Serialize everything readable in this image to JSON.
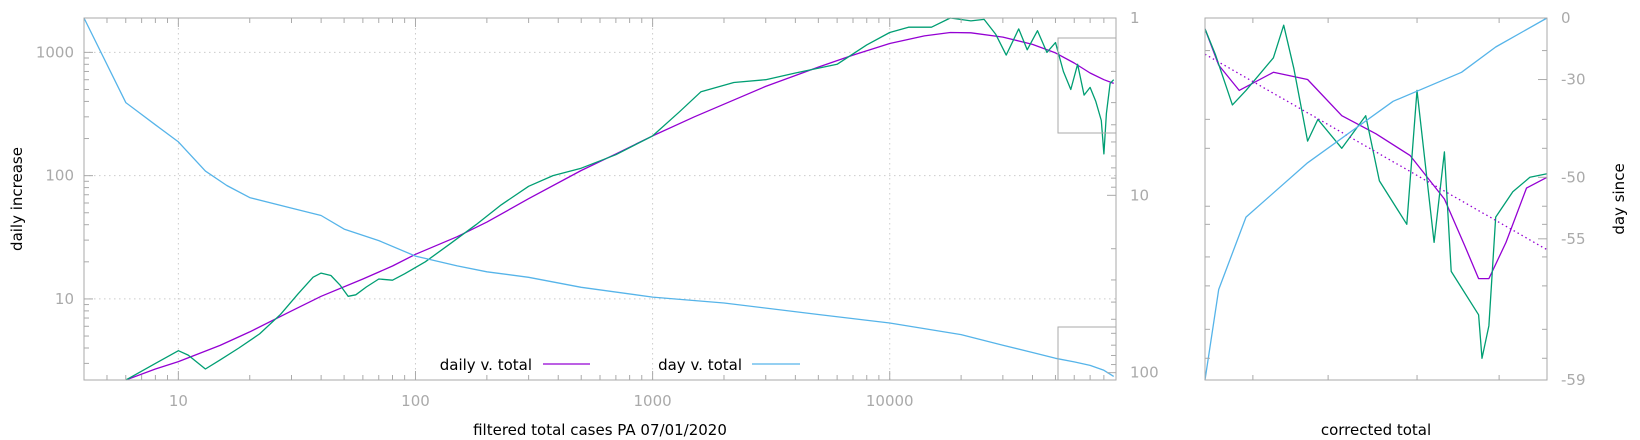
{
  "chart_data": [
    {
      "type": "line",
      "xlabel": "filtered total cases PA 07/01/2020",
      "ylabel": "daily increase",
      "x_scale": "log",
      "y_scale": "log",
      "y2_scale": "log-reversed",
      "xlim": [
        4,
        90000
      ],
      "ylim": [
        2.2,
        1900
      ],
      "y2lim": [
        1,
        110
      ],
      "x_ticks": [
        10,
        100,
        1000,
        10000
      ],
      "x_tick_labels": [
        "10",
        "100",
        "1000",
        "10000"
      ],
      "y_ticks": [
        10,
        100,
        1000
      ],
      "y_tick_labels": [
        "10",
        "100",
        "1000"
      ],
      "y2_ticks": [
        1,
        10,
        100
      ],
      "y2_tick_labels": [
        "1",
        "10",
        "100"
      ],
      "grid": true,
      "legend_position": "bottom-center",
      "colors": {
        "fit": "#9400d3",
        "raw": "#009e73",
        "day": "#56b4e9",
        "frame": "#aaaaaa"
      },
      "series": [
        {
          "name": "daily v. total",
          "axis": "y",
          "points": [
            [
              6,
              2.2
            ],
            [
              8,
              2.7
            ],
            [
              10,
              3.1
            ],
            [
              15,
              4.2
            ],
            [
              20,
              5.4
            ],
            [
              30,
              8.0
            ],
            [
              40,
              10.5
            ],
            [
              60,
              14.5
            ],
            [
              80,
              18.5
            ],
            [
              100,
              23
            ],
            [
              150,
              32
            ],
            [
              200,
              42
            ],
            [
              300,
              65
            ],
            [
              500,
              110
            ],
            [
              700,
              150
            ],
            [
              1000,
              210
            ],
            [
              1500,
              300
            ],
            [
              2000,
              380
            ],
            [
              3000,
              530
            ],
            [
              5000,
              760
            ],
            [
              7000,
              950
            ],
            [
              10000,
              1180
            ],
            [
              14000,
              1360
            ],
            [
              18000,
              1450
            ],
            [
              22000,
              1440
            ],
            [
              30000,
              1330
            ],
            [
              40000,
              1160
            ],
            [
              50000,
              990
            ],
            [
              60000,
              820
            ],
            [
              70000,
              680
            ],
            [
              80000,
              600
            ],
            [
              88000,
              560
            ]
          ]
        },
        {
          "axis": "y",
          "points": [
            [
              6,
              2.2
            ],
            [
              8,
              3.0
            ],
            [
              10,
              3.8
            ],
            [
              11,
              3.5
            ],
            [
              13,
              2.7
            ],
            [
              15,
              3.2
            ],
            [
              18,
              4.0
            ],
            [
              22,
              5.2
            ],
            [
              27,
              7.5
            ],
            [
              32,
              11
            ],
            [
              37,
              15
            ],
            [
              40,
              16.2
            ],
            [
              44,
              15.5
            ],
            [
              48,
              13
            ],
            [
              52,
              10.5
            ],
            [
              56,
              10.8
            ],
            [
              62,
              12.5
            ],
            [
              70,
              14.5
            ],
            [
              80,
              14.2
            ],
            [
              90,
              16
            ],
            [
              110,
              20
            ],
            [
              140,
              28
            ],
            [
              180,
              40
            ],
            [
              230,
              58
            ],
            [
              300,
              82
            ],
            [
              380,
              100
            ],
            [
              500,
              115
            ],
            [
              700,
              148
            ],
            [
              1000,
              210
            ],
            [
              1300,
              330
            ],
            [
              1600,
              480
            ],
            [
              2200,
              570
            ],
            [
              3000,
              600
            ],
            [
              4000,
              680
            ],
            [
              6000,
              800
            ],
            [
              8000,
              1150
            ],
            [
              10000,
              1450
            ],
            [
              12000,
              1600
            ],
            [
              15000,
              1600
            ],
            [
              18000,
              1900
            ],
            [
              22000,
              1800
            ],
            [
              25000,
              1850
            ],
            [
              28000,
              1400
            ],
            [
              31000,
              950
            ],
            [
              35000,
              1550
            ],
            [
              38000,
              1050
            ],
            [
              42000,
              1500
            ],
            [
              46000,
              1000
            ],
            [
              50000,
              1200
            ],
            [
              54000,
              700
            ],
            [
              58000,
              500
            ],
            [
              62000,
              800
            ],
            [
              66000,
              450
            ],
            [
              70000,
              520
            ],
            [
              74000,
              400
            ],
            [
              78000,
              280
            ],
            [
              80000,
              150
            ],
            [
              82000,
              320
            ],
            [
              85000,
              560
            ],
            [
              88000,
              600
            ]
          ]
        },
        {
          "name": "day v. total",
          "axis": "y2",
          "points": [
            [
              4,
              1
            ],
            [
              6,
              3
            ],
            [
              8,
              4
            ],
            [
              10,
              5
            ],
            [
              13,
              7.3
            ],
            [
              16,
              8.8
            ],
            [
              20,
              10.3
            ],
            [
              30,
              11.8
            ],
            [
              40,
              13
            ],
            [
              50,
              15.5
            ],
            [
              70,
              18
            ],
            [
              100,
              22
            ],
            [
              150,
              25
            ],
            [
              200,
              27
            ],
            [
              300,
              29
            ],
            [
              500,
              33
            ],
            [
              1000,
              37.5
            ],
            [
              2000,
              40.5
            ],
            [
              5000,
              47
            ],
            [
              10000,
              52.5
            ],
            [
              20000,
              61
            ],
            [
              30000,
              70
            ],
            [
              40000,
              77
            ],
            [
              50000,
              83
            ],
            [
              60000,
              87
            ],
            [
              70000,
              91
            ],
            [
              80000,
              97
            ],
            [
              88000,
              105
            ]
          ]
        }
      ]
    },
    {
      "type": "line",
      "xlabel": "corrected total",
      "ylabel": "day since",
      "y_ticks": [
        0,
        -30,
        -50,
        -55,
        -59
      ],
      "y_tick_labels": [
        "0",
        "-30",
        "-50",
        "-55",
        "-59"
      ],
      "series": [
        {
          "axis": "y",
          "points": [
            [
              0,
              0.03
            ],
            [
              0.04,
              0.13
            ],
            [
              0.1,
              0.2
            ],
            [
              0.2,
              0.15
            ],
            [
              0.3,
              0.17
            ],
            [
              0.4,
              0.27
            ],
            [
              0.5,
              0.32
            ],
            [
              0.6,
              0.38
            ],
            [
              0.7,
              0.5
            ],
            [
              0.76,
              0.63
            ],
            [
              0.8,
              0.72
            ],
            [
              0.83,
              0.72
            ],
            [
              0.88,
              0.62
            ],
            [
              0.94,
              0.47
            ],
            [
              1,
              0.44
            ]
          ]
        },
        {
          "axis": "y",
          "points": [
            [
              0,
              0.03
            ],
            [
              0.03,
              0.1
            ],
            [
              0.08,
              0.24
            ],
            [
              0.12,
              0.2
            ],
            [
              0.2,
              0.11
            ],
            [
              0.23,
              0.02
            ],
            [
              0.26,
              0.14
            ],
            [
              0.3,
              0.34
            ],
            [
              0.33,
              0.28
            ],
            [
              0.4,
              0.36
            ],
            [
              0.47,
              0.27
            ],
            [
              0.51,
              0.45
            ],
            [
              0.59,
              0.57
            ],
            [
              0.62,
              0.2
            ],
            [
              0.67,
              0.62
            ],
            [
              0.7,
              0.37
            ],
            [
              0.72,
              0.7
            ],
            [
              0.8,
              0.82
            ],
            [
              0.81,
              0.94
            ],
            [
              0.83,
              0.85
            ],
            [
              0.85,
              0.55
            ],
            [
              0.9,
              0.48
            ],
            [
              0.95,
              0.44
            ],
            [
              1,
              0.43
            ]
          ]
        },
        {
          "axis": "y",
          "dash": "dotted",
          "points": [
            [
              0,
              0.1
            ],
            [
              1,
              0.64
            ]
          ]
        },
        {
          "axis": "y2",
          "points": [
            [
              0,
              1.0
            ],
            [
              0.04,
              0.75
            ],
            [
              0.12,
              0.55
            ],
            [
              0.3,
              0.4
            ],
            [
              0.55,
              0.23
            ],
            [
              0.75,
              0.15
            ],
            [
              0.85,
              0.08
            ],
            [
              1,
              0.0
            ]
          ]
        }
      ]
    }
  ]
}
